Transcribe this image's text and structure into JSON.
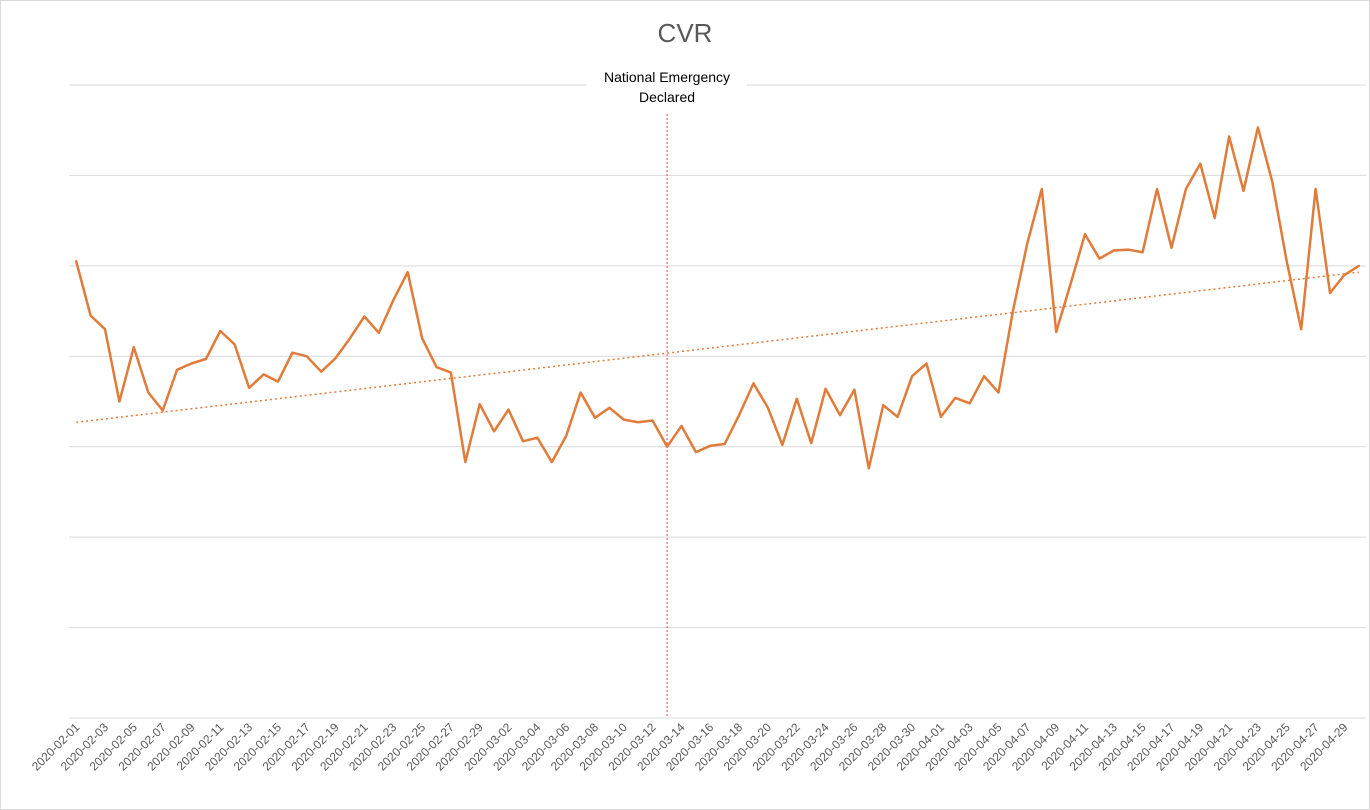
{
  "chart_data": {
    "type": "line",
    "title": "CVR",
    "annotation": {
      "line1": "National Emergency",
      "line2": "Declared",
      "x": "2020-03-13"
    },
    "x": [
      "2020-02-01",
      "2020-02-02",
      "2020-02-03",
      "2020-02-04",
      "2020-02-05",
      "2020-02-06",
      "2020-02-07",
      "2020-02-08",
      "2020-02-09",
      "2020-02-10",
      "2020-02-11",
      "2020-02-12",
      "2020-02-13",
      "2020-02-14",
      "2020-02-15",
      "2020-02-16",
      "2020-02-17",
      "2020-02-18",
      "2020-02-19",
      "2020-02-20",
      "2020-02-21",
      "2020-02-22",
      "2020-02-23",
      "2020-02-24",
      "2020-02-25",
      "2020-02-26",
      "2020-02-27",
      "2020-02-28",
      "2020-02-29",
      "2020-03-01",
      "2020-03-02",
      "2020-03-03",
      "2020-03-04",
      "2020-03-05",
      "2020-03-06",
      "2020-03-07",
      "2020-03-08",
      "2020-03-09",
      "2020-03-10",
      "2020-03-11",
      "2020-03-12",
      "2020-03-13",
      "2020-03-14",
      "2020-03-15",
      "2020-03-16",
      "2020-03-17",
      "2020-03-18",
      "2020-03-19",
      "2020-03-20",
      "2020-03-21",
      "2020-03-22",
      "2020-03-23",
      "2020-03-24",
      "2020-03-25",
      "2020-03-26",
      "2020-03-27",
      "2020-03-28",
      "2020-03-29",
      "2020-03-30",
      "2020-03-31",
      "2020-04-01",
      "2020-04-02",
      "2020-04-03",
      "2020-04-04",
      "2020-04-05",
      "2020-04-06",
      "2020-04-07",
      "2020-04-08",
      "2020-04-09",
      "2020-04-10",
      "2020-04-11",
      "2020-04-12",
      "2020-04-13",
      "2020-04-14",
      "2020-04-15",
      "2020-04-16",
      "2020-04-17",
      "2020-04-18",
      "2020-04-19",
      "2020-04-20",
      "2020-04-21",
      "2020-04-22",
      "2020-04-23",
      "2020-04-24",
      "2020-04-25",
      "2020-04-26",
      "2020-04-27",
      "2020-04-28",
      "2020-04-29",
      "2020-04-30"
    ],
    "x_tick_labels": [
      "2020-02-01",
      "2020-02-03",
      "2020-02-05",
      "2020-02-07",
      "2020-02-09",
      "2020-02-11",
      "2020-02-13",
      "2020-02-15",
      "2020-02-17",
      "2020-02-19",
      "2020-02-21",
      "2020-02-23",
      "2020-02-25",
      "2020-02-27",
      "2020-02-29",
      "2020-03-02",
      "2020-03-04",
      "2020-03-06",
      "2020-03-08",
      "2020-03-10",
      "2020-03-12",
      "2020-03-14",
      "2020-03-16",
      "2020-03-18",
      "2020-03-20",
      "2020-03-22",
      "2020-03-24",
      "2020-03-26",
      "2020-03-28",
      "2020-03-30",
      "2020-04-01",
      "2020-04-03",
      "2020-04-05",
      "2020-04-07",
      "2020-04-09",
      "2020-04-11",
      "2020-04-13",
      "2020-04-15",
      "2020-04-17",
      "2020-04-19",
      "2020-04-21",
      "2020-04-23",
      "2020-04-25",
      "2020-04-27",
      "2020-04-29"
    ],
    "series": [
      {
        "values": [
          5.05,
          4.45,
          4.3,
          3.5,
          4.1,
          3.6,
          3.4,
          3.85,
          3.92,
          3.97,
          4.28,
          4.13,
          3.65,
          3.8,
          3.72,
          4.04,
          4.0,
          3.83,
          3.98,
          4.2,
          4.44,
          4.26,
          4.62,
          4.93,
          4.2,
          3.88,
          3.82,
          2.83,
          3.47,
          3.17,
          3.41,
          3.06,
          3.1,
          2.83,
          3.12,
          3.6,
          3.32,
          3.43,
          3.3,
          3.27,
          3.29,
          3.0,
          3.23,
          2.94,
          3.01,
          3.03,
          3.35,
          3.7,
          3.43,
          3.02,
          3.53,
          3.04,
          3.64,
          3.35,
          3.63,
          2.76,
          3.46,
          3.33,
          3.78,
          3.92,
          3.33,
          3.54,
          3.48,
          3.78,
          3.6,
          4.5,
          5.25,
          5.85,
          4.27,
          4.8,
          5.35,
          5.08,
          5.17,
          5.18,
          5.15,
          5.85,
          5.2,
          5.85,
          6.13,
          5.53,
          6.43,
          5.83,
          6.53,
          5.93,
          5.05,
          4.3,
          5.85,
          4.7,
          4.9,
          5.0
        ],
        "color": "#E07B39"
      }
    ],
    "trendline": {
      "style": "dotted",
      "color": "#E07B39",
      "start": 3.27,
      "end": 4.93
    },
    "ylim": [
      0,
      7
    ],
    "grid": true,
    "xlabel": "",
    "ylabel": "",
    "colors": {
      "line": "#E07B39",
      "event_line": "#E05050",
      "grid": "#d9d9d9"
    }
  }
}
